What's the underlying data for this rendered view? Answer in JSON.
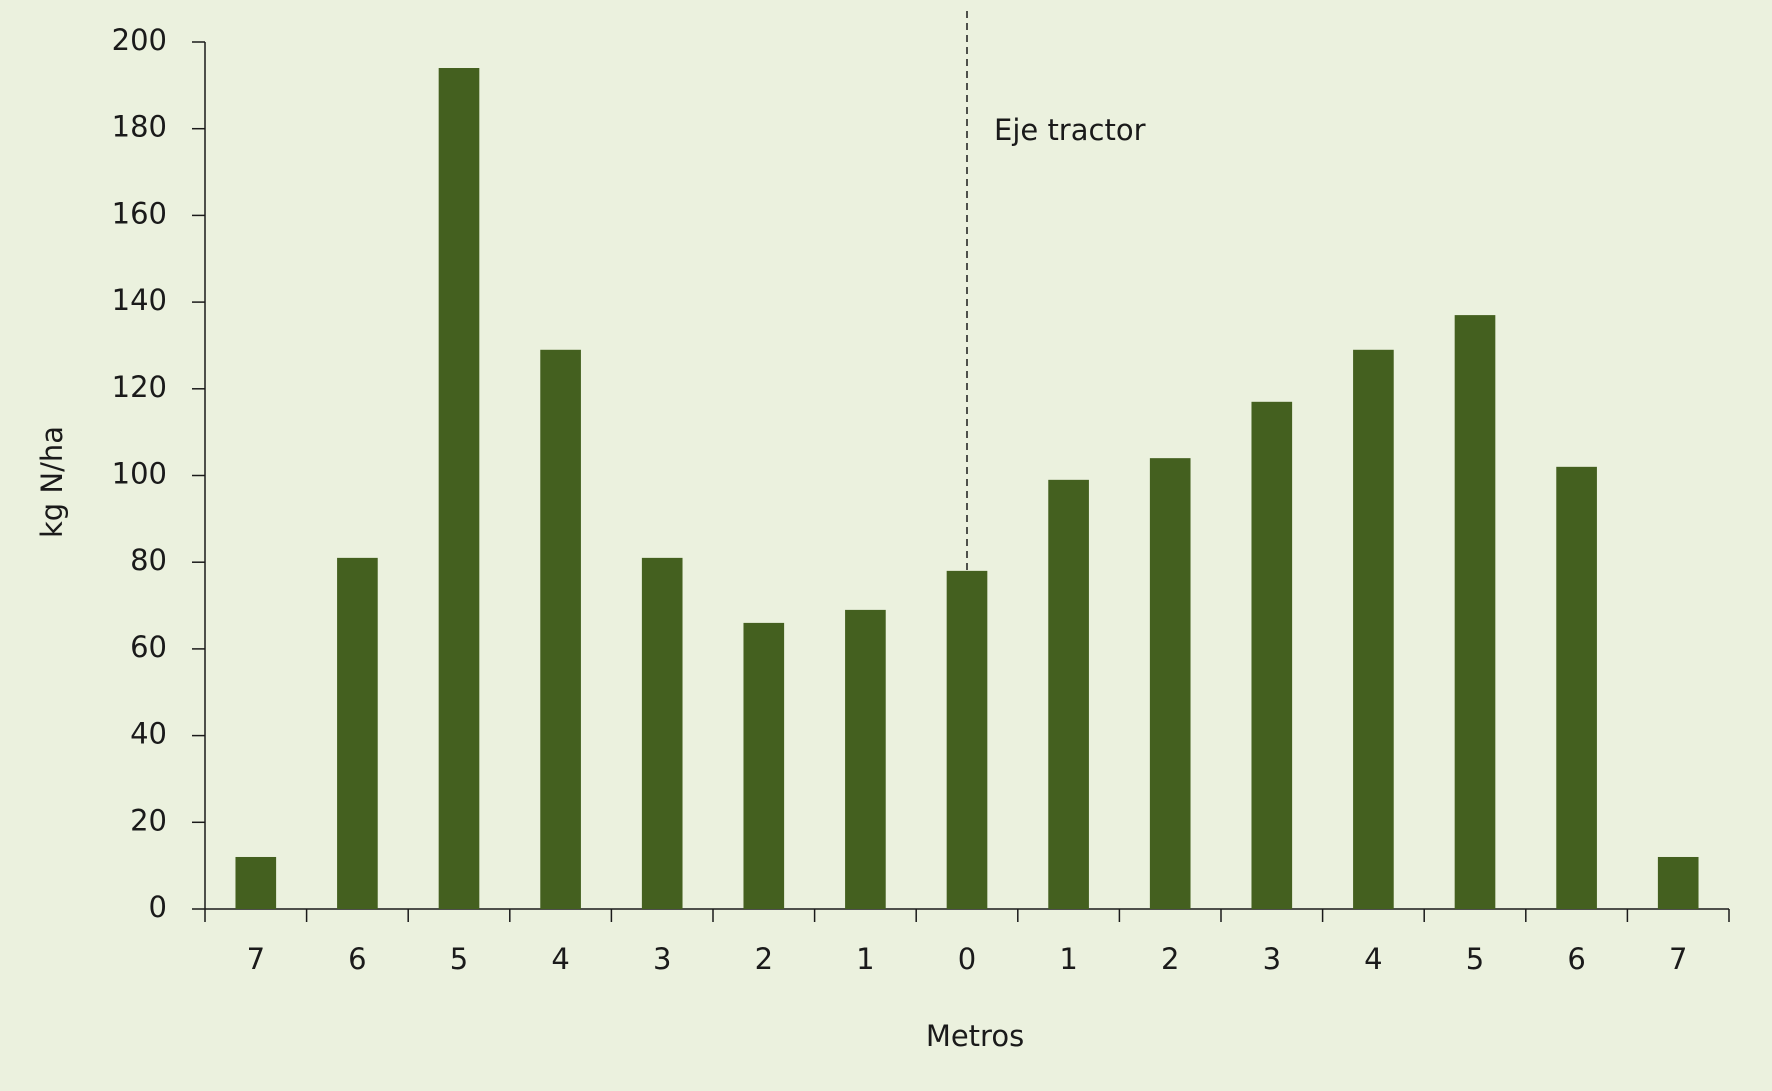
{
  "chart_data": {
    "type": "bar",
    "x_label": "Metros",
    "y_label": "kg N/ha",
    "categories": [
      "7",
      "6",
      "5",
      "4",
      "3",
      "2",
      "1",
      "0",
      "1",
      "2",
      "3",
      "4",
      "5",
      "6",
      "7"
    ],
    "values": [
      12,
      81,
      194,
      129,
      81,
      66,
      69,
      78,
      99,
      104,
      117,
      129,
      137,
      102,
      12
    ],
    "color": "#44601f",
    "ylim": [
      0,
      200
    ],
    "yticks": [
      0,
      20,
      40,
      60,
      80,
      100,
      120,
      140,
      160,
      180,
      200
    ],
    "grid": false,
    "annotation": {
      "text": "Eje tractor",
      "at_category": 7
    }
  }
}
